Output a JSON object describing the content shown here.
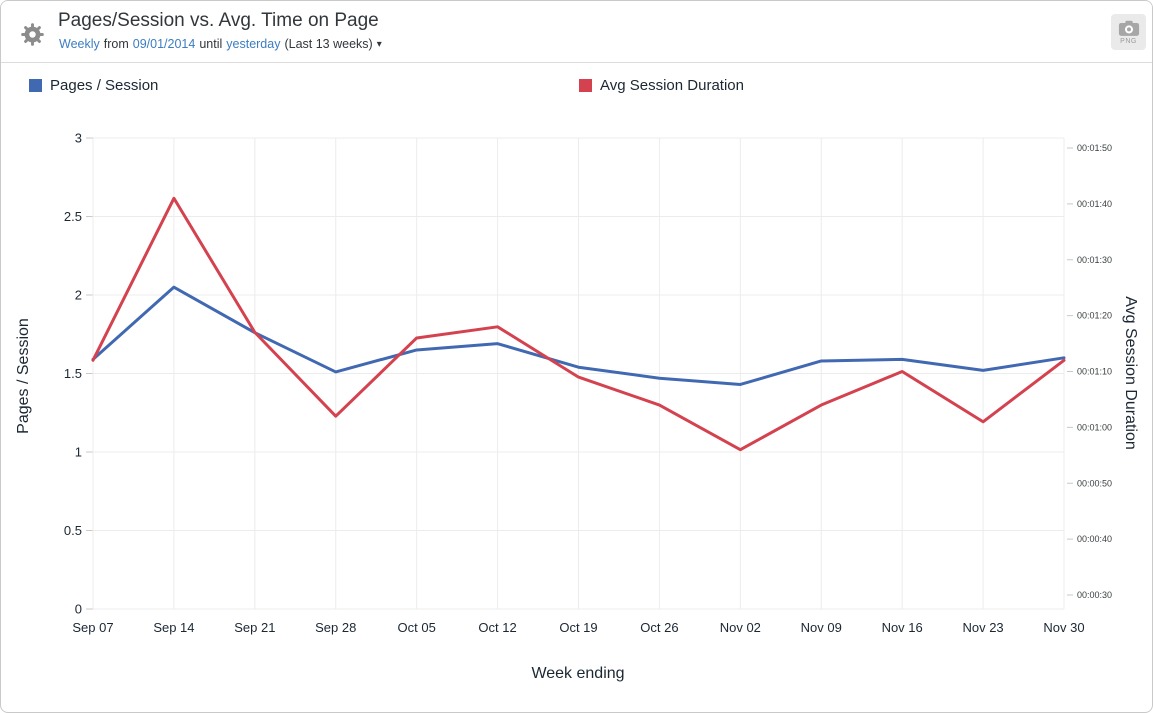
{
  "header": {
    "title": "Pages/Session vs. Avg. Time on Page",
    "subtitle": {
      "frequency": "Weekly",
      "from_word": "from",
      "start_date": "09/01/2014",
      "until_word": "until",
      "end_date": "yesterday",
      "range_note": "(Last 13 weeks)",
      "caret": "▾"
    },
    "export_button": {
      "label": "PNG",
      "icon": "camera-icon"
    }
  },
  "chart_data": {
    "type": "line",
    "title": "Pages/Session vs. Avg. Time on Page",
    "xlabel": "Week ending",
    "legend_position": "top",
    "grid": true,
    "categories": [
      "Sep 07",
      "Sep 14",
      "Sep 21",
      "Sep 28",
      "Oct 05",
      "Oct 12",
      "Oct 19",
      "Oct 26",
      "Nov 02",
      "Nov 09",
      "Nov 16",
      "Nov 23",
      "Nov 30"
    ],
    "series": [
      {
        "name": "Pages / Session",
        "axis": "left",
        "color": "#4169b2",
        "values": [
          1.59,
          2.05,
          1.76,
          1.51,
          1.65,
          1.69,
          1.54,
          1.47,
          1.43,
          1.58,
          1.59,
          1.52,
          1.6
        ]
      },
      {
        "name": "Avg Session Duration",
        "axis": "right",
        "color": "#d4424f",
        "values_seconds": [
          72,
          101,
          77,
          62,
          76,
          78,
          69,
          64,
          56,
          64,
          70,
          61,
          72
        ],
        "values_display": [
          "00:01:12",
          "00:01:41",
          "00:01:17",
          "00:01:02",
          "00:01:16",
          "00:01:18",
          "00:01:09",
          "00:01:04",
          "00:00:56",
          "00:01:04",
          "00:01:10",
          "00:01:01",
          "00:01:12"
        ]
      }
    ],
    "left_axis": {
      "label": "Pages / Session",
      "range": [
        0,
        3
      ],
      "ticks": [
        0,
        0.5,
        1,
        1.5,
        2,
        2.5,
        3
      ],
      "tick_labels": [
        "0",
        "0.5",
        "1",
        "1.5",
        "2",
        "2.5",
        "3"
      ]
    },
    "right_axis": {
      "label": "Avg Session Duration",
      "ticks": [
        {
          "seconds": 110,
          "label": "00:01:50"
        },
        {
          "seconds": 100,
          "label": "00:01:40"
        },
        {
          "seconds": 90,
          "label": "00:01:30"
        },
        {
          "seconds": 80,
          "label": "00:01:20"
        },
        {
          "seconds": 70,
          "label": "00:01:10"
        },
        {
          "seconds": 60,
          "label": "00:01:00"
        },
        {
          "seconds": 50,
          "label": "00:00:50"
        },
        {
          "seconds": 40,
          "label": "00:00:40"
        },
        {
          "seconds": 30,
          "label": "00:00:30"
        }
      ]
    }
  },
  "colors": {
    "series_blue": "#4169b2",
    "series_red": "#d4424f",
    "link_blue": "#3d7dc2",
    "grid": "#ececec",
    "icon_gray": "#8c8c8c"
  }
}
